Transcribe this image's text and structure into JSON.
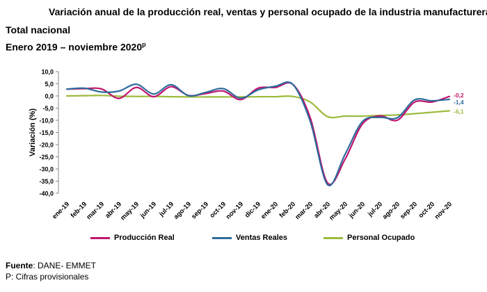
{
  "header": {
    "title": "Variación anual de la producción real, ventas y personal ocupado de la industria manufacturera",
    "subtitle1": "Total nacional",
    "subtitle2_main": "Enero 2019 – noviembre 2020",
    "subtitle2_sup": "p"
  },
  "footer": {
    "source_label": "Fuente",
    "source_text": ": DANE- EMMET",
    "note": "P: Cifras provisionales"
  },
  "chart_data": {
    "type": "line",
    "title": "",
    "xlabel": "",
    "ylabel": "Variación (%)",
    "ylim": [
      -40,
      10
    ],
    "yticks": [
      "10,0",
      "5,0",
      "0,0",
      "-5,0",
      "-10,0",
      "-15,0",
      "-20,0",
      "-25,0",
      "-30,0",
      "-35,0",
      "-40,0"
    ],
    "grid": false,
    "legend_position": "bottom",
    "categories": [
      "ene-19",
      "feb-19",
      "mar-19",
      "abr-19",
      "may-19",
      "jun-19",
      "jul-19",
      "ago-19",
      "sep-19",
      "oct-19",
      "nov-19",
      "dic-19",
      "ene-20",
      "feb-20",
      "mar-20",
      "abr-20",
      "may-20",
      "jun-20",
      "jul-20",
      "ago-20",
      "sep-20",
      "oct-20",
      "nov-20"
    ],
    "series": [
      {
        "name": "Producción Real",
        "color": "#c0146e",
        "values": [
          2.8,
          3.0,
          2.9,
          -1.0,
          3.5,
          -0.3,
          3.8,
          0.2,
          1.0,
          2.0,
          -1.5,
          3.2,
          3.5,
          4.7,
          -9.0,
          -35.8,
          -26.0,
          -11.5,
          -8.2,
          -10.0,
          -2.5,
          -2.5,
          -0.2
        ],
        "end_label": "-0,2"
      },
      {
        "name": "Ventas Reales",
        "color": "#2e6b9c",
        "values": [
          2.8,
          3.2,
          1.6,
          2.0,
          4.8,
          0.8,
          4.6,
          0.1,
          1.5,
          3.0,
          -0.9,
          2.5,
          4.0,
          4.7,
          -10.5,
          -36.5,
          -24.0,
          -10.5,
          -8.8,
          -9.0,
          -1.6,
          -2.0,
          -1.4
        ],
        "end_label": "-1,4"
      },
      {
        "name": "Personal Ocupado",
        "color": "#9cbb3c",
        "values": [
          0.0,
          0.1,
          0.2,
          -0.1,
          -0.2,
          -0.2,
          -0.3,
          -0.4,
          -0.4,
          -0.4,
          -0.4,
          -0.3,
          -0.3,
          -0.2,
          -2.5,
          -8.5,
          -8.3,
          -8.3,
          -8.0,
          -7.8,
          -7.3,
          -6.7,
          -6.1
        ],
        "end_label": "-6,1"
      }
    ]
  }
}
